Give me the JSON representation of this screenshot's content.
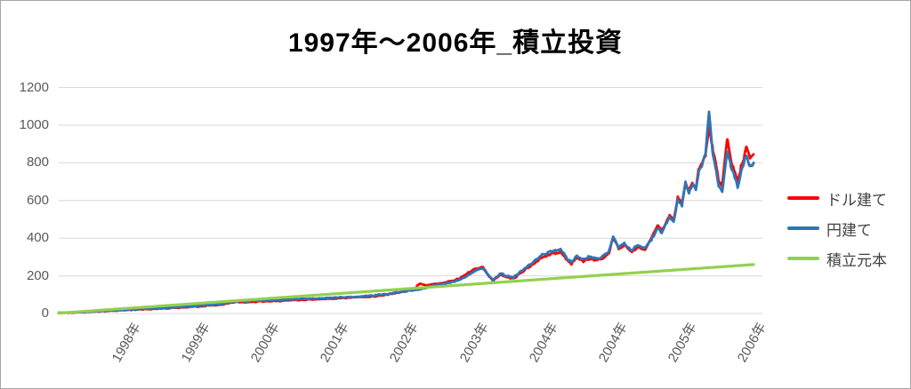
{
  "title": "1997年〜2006年_積立投資",
  "chart_data": {
    "type": "line",
    "title": "1997年〜2006年_積立投資",
    "xlabel": "",
    "ylabel": "",
    "ylim": [
      0,
      1200
    ],
    "y_ticks": [
      0,
      200,
      400,
      600,
      800,
      1000,
      1200
    ],
    "x_tick_labels": [
      "1998年",
      "1999年",
      "2000年",
      "2001年",
      "2002年",
      "2003年",
      "2004年",
      "2004年",
      "2005年",
      "2006年"
    ],
    "x_axis_note": "category axis with 10 equal intervals; the 2004年 label appears twice as in the source chart",
    "grid": "horizontal",
    "grid_color": "#d9d9d9",
    "tick_label_color": "#595959",
    "legend_position": "right",
    "series": [
      {
        "name": "ドル建て",
        "color": "#ff0000",
        "style": "volatile",
        "anchors": [
          [
            0,
            3
          ],
          [
            0.02,
            5
          ],
          [
            0.04,
            9
          ],
          [
            0.06,
            12
          ],
          [
            0.08,
            16
          ],
          [
            0.1,
            19
          ],
          [
            0.12,
            22
          ],
          [
            0.14,
            25
          ],
          [
            0.16,
            29
          ],
          [
            0.18,
            33
          ],
          [
            0.2,
            38
          ],
          [
            0.22,
            43
          ],
          [
            0.235,
            47
          ],
          [
            0.248,
            58
          ],
          [
            0.258,
            62
          ],
          [
            0.268,
            60
          ],
          [
            0.285,
            63
          ],
          [
            0.3,
            65
          ],
          [
            0.32,
            68
          ],
          [
            0.34,
            71
          ],
          [
            0.36,
            74
          ],
          [
            0.38,
            77
          ],
          [
            0.4,
            80
          ],
          [
            0.42,
            84
          ],
          [
            0.44,
            88
          ],
          [
            0.46,
            94
          ],
          [
            0.48,
            104
          ],
          [
            0.5,
            118
          ],
          [
            0.512,
            130
          ],
          [
            0.52,
            160
          ],
          [
            0.528,
            148
          ],
          [
            0.545,
            158
          ],
          [
            0.56,
            168
          ],
          [
            0.575,
            182
          ],
          [
            0.59,
            215
          ],
          [
            0.6,
            238
          ],
          [
            0.61,
            246
          ],
          [
            0.618,
            204
          ],
          [
            0.625,
            172
          ],
          [
            0.635,
            206
          ],
          [
            0.645,
            194
          ],
          [
            0.655,
            184
          ],
          [
            0.665,
            216
          ],
          [
            0.675,
            243
          ],
          [
            0.685,
            268
          ],
          [
            0.695,
            296
          ],
          [
            0.705,
            312
          ],
          [
            0.715,
            322
          ],
          [
            0.722,
            328
          ],
          [
            0.73,
            288
          ],
          [
            0.738,
            262
          ],
          [
            0.745,
            294
          ],
          [
            0.755,
            278
          ],
          [
            0.765,
            290
          ],
          [
            0.775,
            283
          ],
          [
            0.785,
            297
          ],
          [
            0.792,
            322
          ],
          [
            0.798,
            400
          ],
          [
            0.806,
            342
          ],
          [
            0.814,
            364
          ],
          [
            0.824,
            328
          ],
          [
            0.834,
            354
          ],
          [
            0.844,
            340
          ],
          [
            0.853,
            400
          ],
          [
            0.862,
            466
          ],
          [
            0.868,
            438
          ],
          [
            0.879,
            520
          ],
          [
            0.885,
            492
          ],
          [
            0.891,
            620
          ],
          [
            0.897,
            584
          ],
          [
            0.902,
            688
          ],
          [
            0.907,
            652
          ],
          [
            0.912,
            690
          ],
          [
            0.917,
            668
          ],
          [
            0.921,
            760
          ],
          [
            0.926,
            800
          ],
          [
            0.931,
            845
          ],
          [
            0.936,
            988
          ],
          [
            0.941,
            880
          ],
          [
            0.946,
            788
          ],
          [
            0.95,
            698
          ],
          [
            0.955,
            680
          ],
          [
            0.962,
            932
          ],
          [
            0.967,
            822
          ],
          [
            0.972,
            762
          ],
          [
            0.977,
            700
          ],
          [
            0.982,
            778
          ],
          [
            0.986,
            818
          ],
          [
            0.99,
            892
          ],
          [
            0.995,
            822
          ],
          [
            1.0,
            845
          ]
        ]
      },
      {
        "name": "円建て",
        "color": "#2e75b6",
        "style": "volatile",
        "anchors": [
          [
            0,
            3
          ],
          [
            0.02,
            6
          ],
          [
            0.04,
            10
          ],
          [
            0.06,
            13
          ],
          [
            0.08,
            17
          ],
          [
            0.1,
            20
          ],
          [
            0.12,
            24
          ],
          [
            0.14,
            27
          ],
          [
            0.16,
            31
          ],
          [
            0.18,
            35
          ],
          [
            0.2,
            41
          ],
          [
            0.22,
            46
          ],
          [
            0.235,
            50
          ],
          [
            0.248,
            62
          ],
          [
            0.258,
            67
          ],
          [
            0.268,
            65
          ],
          [
            0.285,
            68
          ],
          [
            0.3,
            70
          ],
          [
            0.32,
            72
          ],
          [
            0.34,
            75
          ],
          [
            0.36,
            78
          ],
          [
            0.38,
            81
          ],
          [
            0.4,
            85
          ],
          [
            0.42,
            88
          ],
          [
            0.44,
            92
          ],
          [
            0.46,
            98
          ],
          [
            0.48,
            108
          ],
          [
            0.5,
            120
          ],
          [
            0.515,
            125
          ],
          [
            0.53,
            138
          ],
          [
            0.545,
            152
          ],
          [
            0.56,
            163
          ],
          [
            0.575,
            175
          ],
          [
            0.59,
            205
          ],
          [
            0.6,
            228
          ],
          [
            0.61,
            240
          ],
          [
            0.618,
            208
          ],
          [
            0.625,
            178
          ],
          [
            0.635,
            212
          ],
          [
            0.645,
            200
          ],
          [
            0.655,
            190
          ],
          [
            0.665,
            225
          ],
          [
            0.675,
            252
          ],
          [
            0.685,
            280
          ],
          [
            0.695,
            310
          ],
          [
            0.705,
            325
          ],
          [
            0.715,
            336
          ],
          [
            0.722,
            342
          ],
          [
            0.73,
            300
          ],
          [
            0.738,
            272
          ],
          [
            0.745,
            305
          ],
          [
            0.755,
            288
          ],
          [
            0.765,
            302
          ],
          [
            0.775,
            293
          ],
          [
            0.785,
            308
          ],
          [
            0.792,
            330
          ],
          [
            0.798,
            408
          ],
          [
            0.806,
            350
          ],
          [
            0.814,
            372
          ],
          [
            0.824,
            336
          ],
          [
            0.834,
            362
          ],
          [
            0.844,
            348
          ],
          [
            0.853,
            392
          ],
          [
            0.862,
            452
          ],
          [
            0.868,
            430
          ],
          [
            0.879,
            512
          ],
          [
            0.885,
            487
          ],
          [
            0.891,
            600
          ],
          [
            0.897,
            576
          ],
          [
            0.902,
            695
          ],
          [
            0.907,
            646
          ],
          [
            0.912,
            682
          ],
          [
            0.917,
            660
          ],
          [
            0.921,
            748
          ],
          [
            0.926,
            792
          ],
          [
            0.931,
            852
          ],
          [
            0.936,
            1075
          ],
          [
            0.941,
            862
          ],
          [
            0.946,
            760
          ],
          [
            0.95,
            672
          ],
          [
            0.955,
            646
          ],
          [
            0.962,
            868
          ],
          [
            0.967,
            792
          ],
          [
            0.972,
            740
          ],
          [
            0.977,
            668
          ],
          [
            0.982,
            748
          ],
          [
            0.986,
            800
          ],
          [
            0.99,
            838
          ],
          [
            0.995,
            778
          ],
          [
            1.0,
            800
          ]
        ]
      },
      {
        "name": "積立元本",
        "color": "#92d050",
        "style": "straight",
        "anchors": [
          [
            0,
            2
          ],
          [
            1,
            260
          ]
        ]
      }
    ]
  }
}
